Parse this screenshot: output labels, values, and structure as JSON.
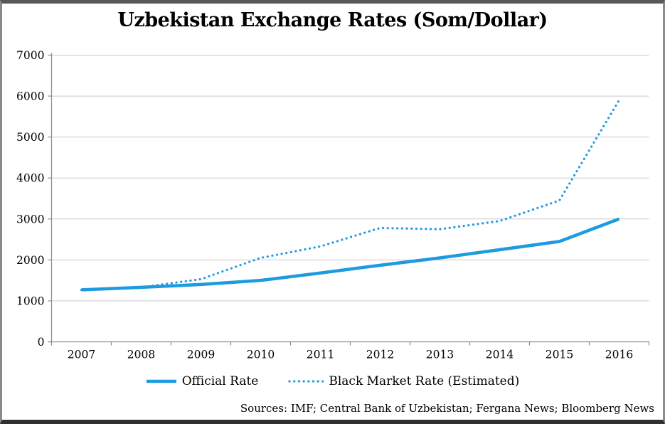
{
  "title": "Uzbekistan Exchange Rates (Som/Dollar)",
  "source_note": "Sources: IMF; Central Bank of Uzbekistan; Fergana News; Bloomberg News",
  "colors": {
    "accent_blue": "#1E9BE0",
    "gridline": "#C9C9C9",
    "axis": "#8C8C8C",
    "text": "#000000"
  },
  "chart_data": {
    "type": "line",
    "title": "Uzbekistan Exchange Rates (Som/Dollar)",
    "x": [
      2007,
      2008,
      2009,
      2010,
      2011,
      2012,
      2013,
      2014,
      2015,
      2016
    ],
    "series": [
      {
        "name": "Official Rate",
        "style": "solid",
        "values": [
          1270,
          1330,
          1400,
          1500,
          1680,
          1870,
          2050,
          2250,
          2450,
          3000
        ]
      },
      {
        "name": "Black Market Rate (Estimated)",
        "style": "dotted",
        "values": [
          1270,
          1330,
          1530,
          2050,
          2330,
          2780,
          2750,
          2950,
          3450,
          5900
        ]
      }
    ],
    "xlabel": "",
    "ylabel": "",
    "ylim": [
      0,
      7000
    ],
    "ytick_step": 1000,
    "grid": true,
    "legend_position": "bottom"
  }
}
